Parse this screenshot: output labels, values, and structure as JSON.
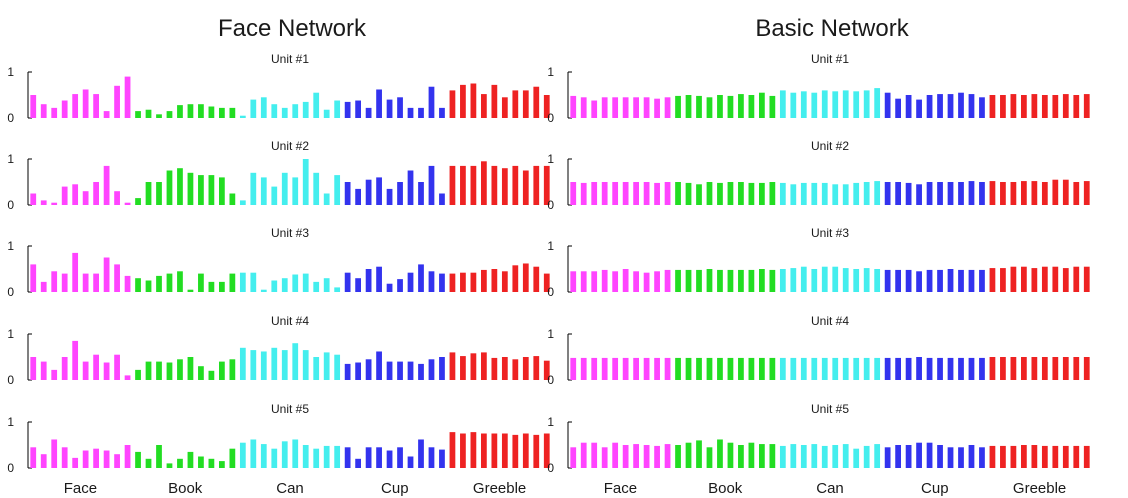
{
  "panels": [
    {
      "title": "Face Network"
    },
    {
      "title": "Basic Network"
    }
  ],
  "class_colors": {
    "Face": "#ff44ff",
    "Book": "#22dd22",
    "Can": "#44eeee",
    "Cup": "#3333ee",
    "Greeble": "#ee2222"
  },
  "chart_data": [
    {
      "type": "bar",
      "title": "Face Network",
      "xlabel": "",
      "ylabel": "",
      "ylim": [
        0,
        1
      ],
      "yticks": [
        0,
        1
      ],
      "categories": [
        "Face",
        "Book",
        "Can",
        "Cup",
        "Greeble"
      ],
      "bars_per_category": 10,
      "grid": false,
      "subplots": [
        {
          "title": "Unit #1",
          "values": [
            0.5,
            0.3,
            0.22,
            0.38,
            0.52,
            0.62,
            0.52,
            0.15,
            0.7,
            0.9,
            0.15,
            0.18,
            0.08,
            0.15,
            0.28,
            0.3,
            0.3,
            0.25,
            0.22,
            0.22,
            0.05,
            0.4,
            0.45,
            0.3,
            0.22,
            0.3,
            0.35,
            0.55,
            0.18,
            0.38,
            0.35,
            0.38,
            0.22,
            0.62,
            0.4,
            0.45,
            0.22,
            0.22,
            0.68,
            0.22,
            0.6,
            0.72,
            0.75,
            0.52,
            0.72,
            0.45,
            0.6,
            0.6,
            0.68,
            0.5
          ]
        },
        {
          "title": "Unit #2",
          "values": [
            0.25,
            0.1,
            0.05,
            0.4,
            0.45,
            0.3,
            0.5,
            0.85,
            0.3,
            0.05,
            0.15,
            0.5,
            0.5,
            0.75,
            0.8,
            0.7,
            0.65,
            0.65,
            0.6,
            0.25,
            0.1,
            0.7,
            0.6,
            0.4,
            0.7,
            0.6,
            1.0,
            0.7,
            0.25,
            0.65,
            0.5,
            0.35,
            0.55,
            0.6,
            0.35,
            0.5,
            0.75,
            0.5,
            0.85,
            0.25,
            0.85,
            0.85,
            0.85,
            0.95,
            0.85,
            0.8,
            0.85,
            0.75,
            0.85,
            0.85
          ]
        },
        {
          "title": "Unit #3",
          "values": [
            0.6,
            0.22,
            0.45,
            0.4,
            0.85,
            0.4,
            0.4,
            0.75,
            0.6,
            0.35,
            0.3,
            0.25,
            0.35,
            0.4,
            0.45,
            0.05,
            0.4,
            0.22,
            0.22,
            0.4,
            0.42,
            0.42,
            0.05,
            0.25,
            0.3,
            0.38,
            0.4,
            0.22,
            0.3,
            0.1,
            0.42,
            0.3,
            0.5,
            0.55,
            0.18,
            0.28,
            0.42,
            0.6,
            0.45,
            0.4,
            0.4,
            0.42,
            0.42,
            0.48,
            0.5,
            0.45,
            0.58,
            0.62,
            0.55,
            0.4
          ]
        },
        {
          "title": "Unit #4",
          "values": [
            0.5,
            0.4,
            0.22,
            0.5,
            0.85,
            0.4,
            0.55,
            0.38,
            0.55,
            0.1,
            0.22,
            0.4,
            0.4,
            0.38,
            0.45,
            0.5,
            0.3,
            0.2,
            0.4,
            0.45,
            0.7,
            0.65,
            0.62,
            0.7,
            0.65,
            0.8,
            0.65,
            0.5,
            0.6,
            0.55,
            0.35,
            0.38,
            0.45,
            0.62,
            0.4,
            0.4,
            0.4,
            0.35,
            0.45,
            0.5,
            0.6,
            0.52,
            0.58,
            0.6,
            0.48,
            0.5,
            0.45,
            0.5,
            0.52,
            0.42
          ]
        },
        {
          "title": "Unit #5",
          "values": [
            0.45,
            0.3,
            0.62,
            0.45,
            0.22,
            0.38,
            0.42,
            0.38,
            0.3,
            0.5,
            0.35,
            0.2,
            0.5,
            0.1,
            0.2,
            0.35,
            0.25,
            0.2,
            0.15,
            0.42,
            0.55,
            0.62,
            0.52,
            0.42,
            0.58,
            0.62,
            0.5,
            0.42,
            0.48,
            0.48,
            0.45,
            0.2,
            0.45,
            0.45,
            0.38,
            0.45,
            0.25,
            0.62,
            0.45,
            0.4,
            0.78,
            0.75,
            0.78,
            0.75,
            0.75,
            0.75,
            0.72,
            0.75,
            0.72,
            0.75
          ]
        }
      ]
    },
    {
      "type": "bar",
      "title": "Basic Network",
      "xlabel": "",
      "ylabel": "",
      "ylim": [
        0,
        1
      ],
      "yticks": [
        0,
        1
      ],
      "categories": [
        "Face",
        "Book",
        "Can",
        "Cup",
        "Greeble"
      ],
      "bars_per_category": 10,
      "grid": false,
      "subplots": [
        {
          "title": "Unit #1",
          "values": [
            0.48,
            0.45,
            0.38,
            0.45,
            0.45,
            0.45,
            0.45,
            0.45,
            0.42,
            0.45,
            0.48,
            0.5,
            0.48,
            0.45,
            0.5,
            0.48,
            0.52,
            0.5,
            0.55,
            0.48,
            0.6,
            0.55,
            0.58,
            0.55,
            0.6,
            0.58,
            0.6,
            0.58,
            0.6,
            0.65,
            0.55,
            0.42,
            0.5,
            0.4,
            0.5,
            0.52,
            0.52,
            0.55,
            0.52,
            0.45,
            0.5,
            0.5,
            0.52,
            0.5,
            0.52,
            0.5,
            0.5,
            0.52,
            0.5,
            0.52
          ]
        },
        {
          "title": "Unit #2",
          "values": [
            0.5,
            0.48,
            0.5,
            0.5,
            0.5,
            0.5,
            0.5,
            0.5,
            0.48,
            0.5,
            0.5,
            0.48,
            0.45,
            0.5,
            0.48,
            0.5,
            0.5,
            0.48,
            0.48,
            0.5,
            0.48,
            0.45,
            0.48,
            0.48,
            0.48,
            0.45,
            0.45,
            0.48,
            0.5,
            0.52,
            0.5,
            0.5,
            0.48,
            0.45,
            0.5,
            0.5,
            0.5,
            0.5,
            0.52,
            0.5,
            0.52,
            0.5,
            0.5,
            0.52,
            0.52,
            0.5,
            0.55,
            0.55,
            0.5,
            0.52
          ]
        },
        {
          "title": "Unit #3",
          "values": [
            0.45,
            0.45,
            0.45,
            0.48,
            0.45,
            0.5,
            0.45,
            0.42,
            0.45,
            0.48,
            0.48,
            0.48,
            0.48,
            0.5,
            0.48,
            0.48,
            0.48,
            0.48,
            0.5,
            0.48,
            0.5,
            0.52,
            0.55,
            0.5,
            0.55,
            0.55,
            0.52,
            0.5,
            0.52,
            0.5,
            0.48,
            0.48,
            0.48,
            0.45,
            0.48,
            0.48,
            0.5,
            0.48,
            0.48,
            0.48,
            0.52,
            0.52,
            0.55,
            0.55,
            0.52,
            0.55,
            0.55,
            0.52,
            0.55,
            0.55
          ]
        },
        {
          "title": "Unit #4",
          "values": [
            0.48,
            0.48,
            0.48,
            0.48,
            0.48,
            0.48,
            0.48,
            0.48,
            0.48,
            0.48,
            0.48,
            0.48,
            0.48,
            0.48,
            0.48,
            0.48,
            0.48,
            0.48,
            0.48,
            0.48,
            0.48,
            0.48,
            0.48,
            0.48,
            0.48,
            0.48,
            0.48,
            0.48,
            0.48,
            0.48,
            0.48,
            0.48,
            0.48,
            0.5,
            0.48,
            0.48,
            0.48,
            0.48,
            0.48,
            0.48,
            0.5,
            0.5,
            0.5,
            0.5,
            0.5,
            0.5,
            0.5,
            0.5,
            0.5,
            0.5
          ]
        },
        {
          "title": "Unit #5",
          "values": [
            0.45,
            0.55,
            0.55,
            0.45,
            0.55,
            0.5,
            0.52,
            0.5,
            0.48,
            0.52,
            0.5,
            0.55,
            0.6,
            0.45,
            0.62,
            0.55,
            0.5,
            0.55,
            0.52,
            0.52,
            0.48,
            0.52,
            0.5,
            0.52,
            0.48,
            0.5,
            0.52,
            0.42,
            0.48,
            0.52,
            0.45,
            0.5,
            0.5,
            0.55,
            0.55,
            0.5,
            0.45,
            0.45,
            0.5,
            0.45,
            0.48,
            0.48,
            0.48,
            0.5,
            0.5,
            0.48,
            0.48,
            0.48,
            0.48,
            0.48
          ]
        }
      ]
    }
  ]
}
